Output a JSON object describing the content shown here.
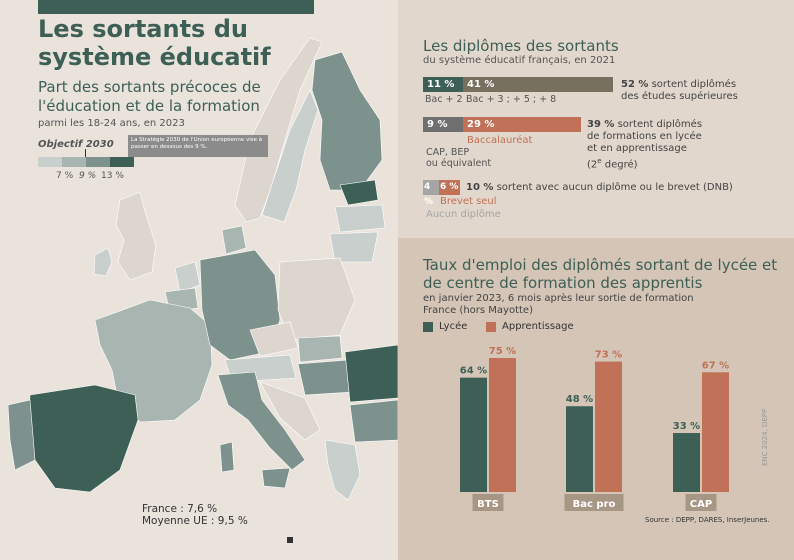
{
  "left": {
    "title": "Les sortants du système éducatif",
    "map_title": "Part des sortants précoces de l'éducation et de la formation",
    "map_note": "parmi les 18-24 ans, en 2023",
    "objective_label": "Objectif 2030",
    "objective_desc": "La Stratégie 2030 de l'Union européenne vise à passer en dessous des 9 %.",
    "scale_labels": [
      "7 %",
      "9 %",
      "13 %"
    ],
    "scale_colors": [
      "#c8cfcc",
      "#a9b5b1",
      "#7d928c",
      "#3d5f56"
    ],
    "france_label": "France : 7,6 %",
    "eu_label": "Moyenne UE : 9,5 %"
  },
  "diplomes": {
    "title": "Les diplômes des sortants",
    "subtitle": "du système éducatif français, en 2021",
    "rows": [
      {
        "segments": [
          {
            "value": "11 %",
            "label": "Bac + 2",
            "color": "#3d5f56"
          },
          {
            "value": "41 %",
            "label": "Bac + 3 ; + 5 ; + 8",
            "color": "#77705f"
          }
        ],
        "pct": "52 %",
        "text1": " sortent diplômés",
        "text2": "des études supérieures"
      },
      {
        "segments": [
          {
            "value": "9 %",
            "label": "CAP, BEP",
            "label2": "ou équivalent",
            "color": "#6f6f6f"
          },
          {
            "value": "29 %",
            "label": "Baccalauréat",
            "color": "#c07158"
          }
        ],
        "pct": "39 %",
        "text1": " sortent diplômés",
        "text2": "de formations en lycée",
        "text3": "et en apprentissage",
        "text4": "(2",
        "text4_sup": "e",
        "text4_end": " degré)"
      },
      {
        "segments": [
          {
            "value": "4 %",
            "label": "Aucun diplôme",
            "color": "#a5a5a5"
          },
          {
            "value": "6 %",
            "label": "Brevet seul",
            "color": "#c07158"
          }
        ],
        "pct": "10 %",
        "text1": " sortent avec aucun diplôme ou le brevet (DNB)"
      }
    ]
  },
  "chart_data": {
    "type": "bar",
    "title": "Taux d'emploi des diplômés sortant de lycée et de centre de formation des apprentis",
    "subtitle": "en janvier 2023, 6 mois après leur sortie de formation",
    "subtitle2": "France (hors Mayotte)",
    "categories": [
      "BTS",
      "Bac pro",
      "CAP"
    ],
    "series": [
      {
        "name": "Lycée",
        "values": [
          64,
          48,
          33
        ],
        "labels": [
          "64 %",
          "48 %",
          "33 %"
        ],
        "color": "#3d5f56"
      },
      {
        "name": "Apprentissage",
        "values": [
          75,
          73,
          67
        ],
        "labels": [
          "75 %",
          "73 %",
          "67 %"
        ],
        "color": "#c07158"
      }
    ],
    "ylim": [
      0,
      75
    ],
    "grid": false
  },
  "footer": {
    "source": "Source : DEPP, DARES, InserJeunes.",
    "credit": "ENC 2024, DEPP"
  }
}
